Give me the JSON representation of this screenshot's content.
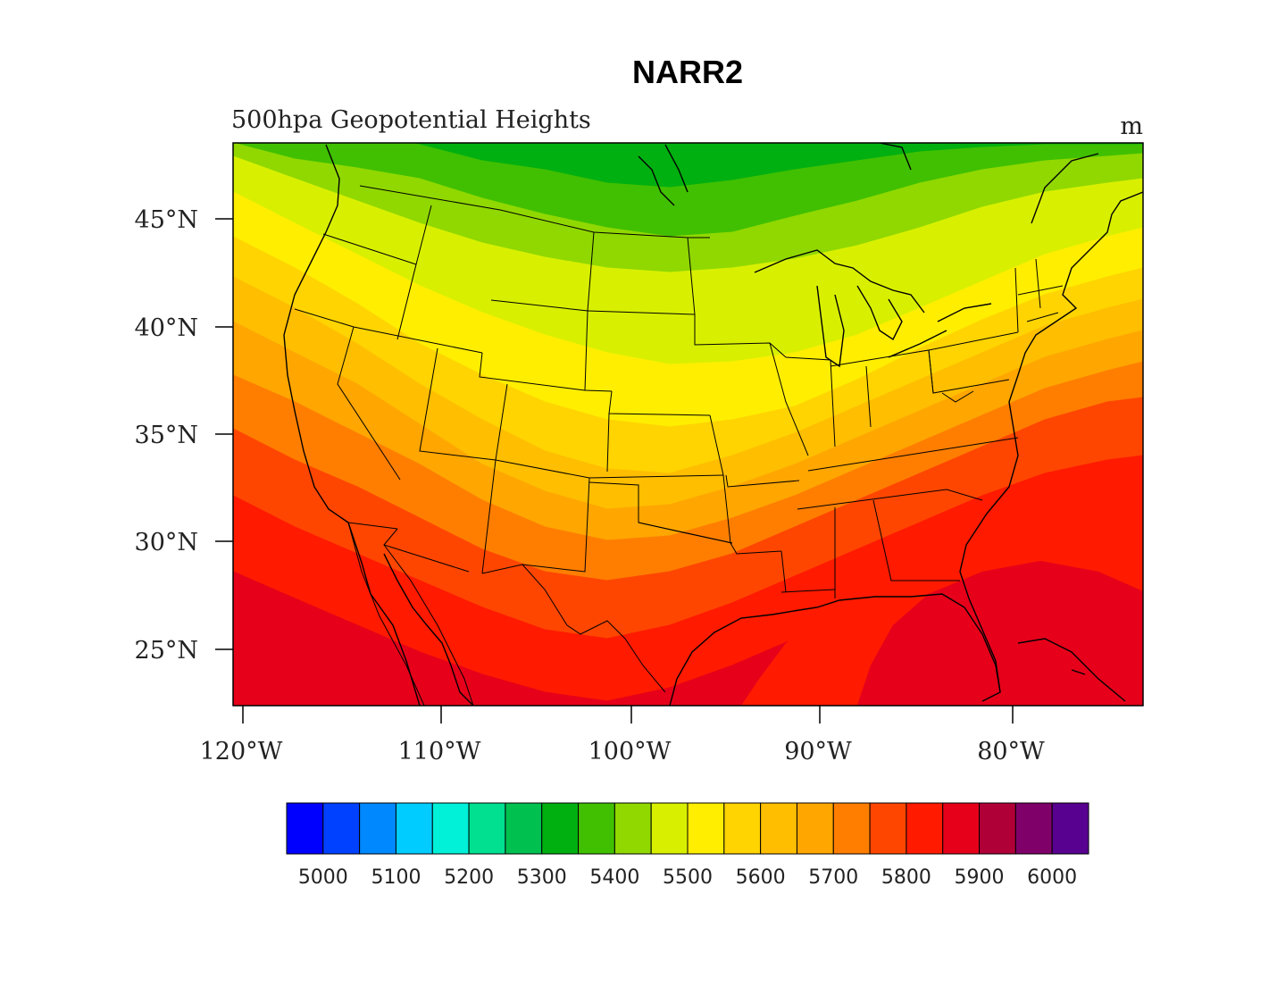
{
  "title": "NARR2",
  "subtitle": "500hpa Geopotential Heights",
  "units": "m",
  "lat_labels": [
    "45°N",
    "40°N",
    "35°N",
    "30°N",
    "25°N"
  ],
  "lon_labels": [
    "120°W",
    "110°W",
    "100°W",
    "90°W",
    "80°W"
  ],
  "colorbar": {
    "labels": [
      "5000",
      "5100",
      "5200",
      "5300",
      "5400",
      "5500",
      "5600",
      "5700",
      "5800",
      "5900",
      "6000"
    ],
    "colors": [
      "#0000ff",
      "#0040ff",
      "#0088ff",
      "#00ccff",
      "#00f0d8",
      "#00e090",
      "#00c050",
      "#00b010",
      "#40c000",
      "#90d800",
      "#d8f000",
      "#ffee00",
      "#ffd400",
      "#ffbe00",
      "#ffa600",
      "#ff7e00",
      "#ff4600",
      "#ff1a00",
      "#e6001a",
      "#b00038",
      "#80006a",
      "#580090"
    ]
  },
  "map": {
    "region": "Continental United States",
    "field": "500hpa Geopotential Heights",
    "lat_range": [
      22.5,
      48.5
    ],
    "lon_range": [
      -120.5,
      -73.5
    ],
    "band_colors_north_to_south": [
      "#00b010",
      "#40c000",
      "#90d800",
      "#d8f000",
      "#ffee00",
      "#ffd400",
      "#ffbe00",
      "#ffa600",
      "#ff7e00",
      "#ff4600",
      "#ff1a00",
      "#e6001a"
    ]
  }
}
